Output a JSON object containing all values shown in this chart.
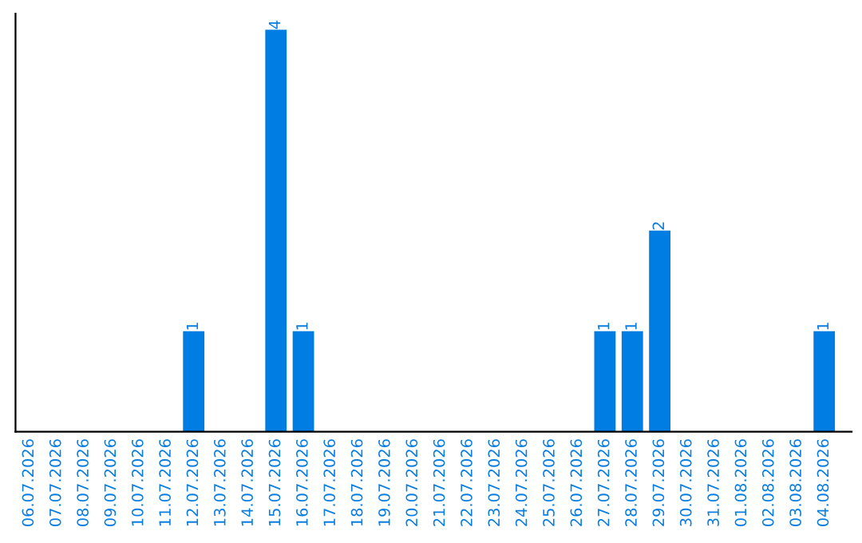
{
  "chart_data": {
    "type": "bar",
    "categories": [
      "06.07.2026",
      "07.07.2026",
      "08.07.2026",
      "09.07.2026",
      "10.07.2026",
      "11.07.2026",
      "12.07.2026",
      "13.07.2026",
      "14.07.2026",
      "15.07.2026",
      "16.07.2026",
      "17.07.2026",
      "18.07.2026",
      "19.07.2026",
      "20.07.2026",
      "21.07.2026",
      "22.07.2026",
      "23.07.2026",
      "24.07.2026",
      "25.07.2026",
      "26.07.2026",
      "27.07.2026",
      "28.07.2026",
      "29.07.2026",
      "30.07.2026",
      "31.07.2026",
      "01.08.2026",
      "02.08.2026",
      "03.08.2026",
      "04.08.2026"
    ],
    "values": [
      0,
      0,
      0,
      0,
      0,
      0,
      1,
      0,
      0,
      4,
      1,
      0,
      0,
      0,
      0,
      0,
      0,
      0,
      0,
      0,
      0,
      1,
      1,
      2,
      0,
      0,
      0,
      0,
      0,
      1
    ],
    "value_labels": [
      null,
      null,
      null,
      null,
      null,
      null,
      "1",
      null,
      null,
      "4",
      "1",
      null,
      null,
      null,
      null,
      null,
      null,
      null,
      null,
      null,
      null,
      "1",
      "1",
      "2",
      null,
      null,
      null,
      null,
      null,
      "1"
    ],
    "color": "#007de3",
    "tick_labels": "x",
    "grid": false,
    "legend": false
  }
}
